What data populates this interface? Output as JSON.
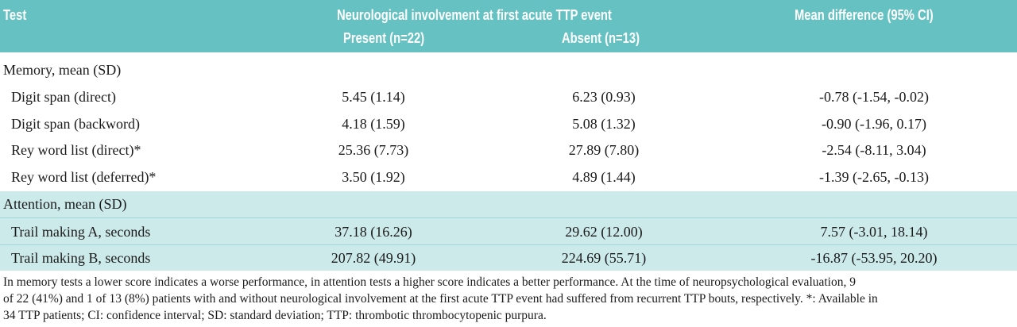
{
  "header": {
    "test": "Test",
    "group": "Neurological involvement at first acute TTP event",
    "present": "Present (n=22)",
    "absent": "Absent (n=13)",
    "mean_diff": "Mean difference (95% CI)"
  },
  "memory": {
    "title": "Memory, mean (SD)",
    "rows": [
      {
        "label": "Digit span (direct)",
        "present": "5.45 (1.14)",
        "absent": "6.23 (0.93)",
        "diff": "-0.78 (-1.54, -0.02)"
      },
      {
        "label": "Digit span (backword)",
        "present": "4.18 (1.59)",
        "absent": "5.08 (1.32)",
        "diff": "-0.90 (-1.96, 0.17)"
      },
      {
        "label": "Rey word list (direct)*",
        "present": "25.36 (7.73)",
        "absent": "27.89 (7.80)",
        "diff": "-2.54 (-8.11, 3.04)"
      },
      {
        "label": "Rey word list (deferred)*",
        "present": "3.50 (1.92)",
        "absent": "4.89 (1.44)",
        "diff": "-1.39 (-2.65, -0.13)"
      }
    ]
  },
  "attention": {
    "title": "Attention, mean (SD)",
    "rows": [
      {
        "label": "Trail making A, seconds",
        "present": "37.18 (16.26)",
        "absent": "29.62 (12.00)",
        "diff": "7.57 (-3.01, 18.14)"
      },
      {
        "label": "Trail making B, seconds",
        "present": "207.82 (49.91)",
        "absent": "224.69 (55.71)",
        "diff": "-16.87 (-53.95, 20.20)"
      }
    ]
  },
  "footnote": {
    "line1": "In memory tests a lower score indicates a worse performance, in attention tests a higher score indicates a better performance. At the time of neuropsychological evaluation, 9",
    "line2": "of 22 (41%) and 1 of 13 (8%) patients with and without neurological involvement at the first acute TTP event had suffered from recurrent TTP bouts, respectively. *: Available in",
    "line3": "34 TTP patients; CI: confidence interval; SD: standard deviation; TTP: thrombotic thrombocytopenic purpura."
  }
}
